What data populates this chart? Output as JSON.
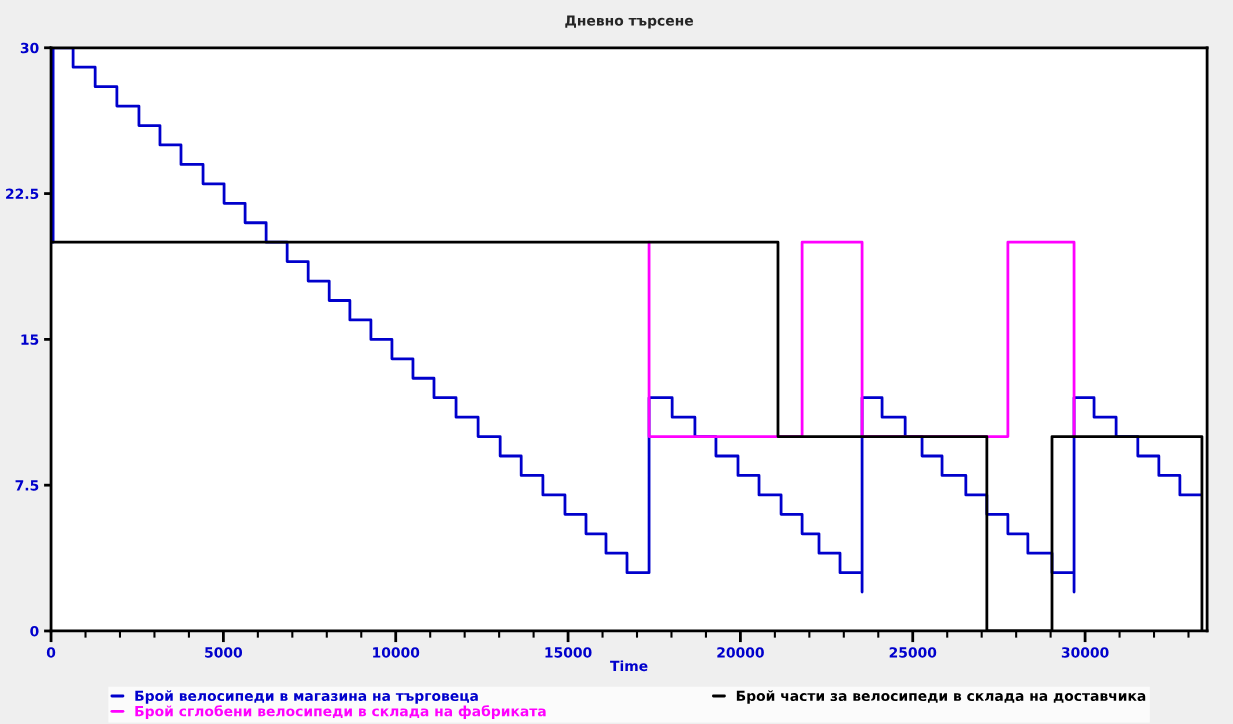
{
  "chart_data": {
    "type": "step",
    "title": "Дневно търсене",
    "xlabel": "Time",
    "xlim": [
      0,
      33540
    ],
    "ylim": [
      0,
      30
    ],
    "xticks": [
      0,
      {
        "value": 1000,
        "label": null
      },
      {
        "value": 2000,
        "label": null
      },
      {
        "value": 3000,
        "label": null
      },
      {
        "value": 4000,
        "label": null
      },
      5000,
      {
        "value": 6000,
        "label": null
      },
      {
        "value": 7000,
        "label": null
      },
      {
        "value": 8000,
        "label": null
      },
      {
        "value": 9000,
        "label": null
      },
      10000,
      {
        "value": 11000,
        "label": null
      },
      {
        "value": 12000,
        "label": null
      },
      {
        "value": 13000,
        "label": null
      },
      {
        "value": 14000,
        "label": null
      },
      15000,
      {
        "value": 16000,
        "label": null
      },
      {
        "value": 17000,
        "label": null
      },
      {
        "value": 18000,
        "label": null
      },
      {
        "value": 19000,
        "label": null
      },
      20000,
      {
        "value": 21000,
        "label": null
      },
      {
        "value": 22000,
        "label": null
      },
      {
        "value": 23000,
        "label": null
      },
      {
        "value": 24000,
        "label": null
      },
      25000,
      {
        "value": 26000,
        "label": null
      },
      {
        "value": 27000,
        "label": null
      },
      {
        "value": 28000,
        "label": null
      },
      {
        "value": 29000,
        "label": null
      },
      30000,
      {
        "value": 31000,
        "label": null
      },
      {
        "value": 32000,
        "label": null
      },
      {
        "value": 33000,
        "label": null
      }
    ],
    "yticks": [
      0,
      7.5,
      15,
      22.5,
      30
    ],
    "grid": false,
    "legend": "bottom",
    "series": [
      {
        "name": "Брой велосипеди в магазина на търговеца",
        "color": "#0000cc",
        "x": [
          0,
          60,
          640,
          1280,
          1910,
          2550,
          3160,
          3770,
          4410,
          5020,
          5630,
          6240,
          6850,
          7460,
          8070,
          8670,
          9280,
          9890,
          10500,
          11110,
          11750,
          12390,
          13030,
          13640,
          14270,
          14910,
          15520,
          16100,
          16710,
          17350,
          18020,
          18680,
          19290,
          19930,
          20540,
          21180,
          21790,
          22280,
          22890,
          23530,
          23530,
          24110,
          24780,
          25270,
          25850,
          26540,
          27150,
          27760,
          28340,
          29040,
          29680,
          29680,
          30260,
          30900,
          31530,
          32140,
          32750,
          33360
        ],
        "values": [
          20,
          30,
          29,
          28,
          27,
          26,
          25,
          24,
          23,
          22,
          21,
          20,
          19,
          18,
          17,
          16,
          15,
          14,
          13,
          12,
          11,
          10,
          9,
          8,
          7,
          6,
          5,
          4,
          3,
          12,
          11,
          10,
          9,
          8,
          7,
          6,
          5,
          4,
          3,
          2,
          12,
          11,
          10,
          9,
          8,
          7,
          6,
          5,
          4,
          3,
          2,
          12,
          11,
          10,
          9,
          8,
          7,
          7
        ]
      },
      {
        "name": "Брой сглобени велосипеди в склада на фабриката",
        "color": "#ff00ff",
        "x": [
          17350,
          17350,
          21790,
          23530,
          27760,
          29680
        ],
        "values": [
          20,
          10,
          20,
          10,
          20,
          10
        ]
      },
      {
        "name": "Брой части за велосипеди в склада на доставчика",
        "color": "#000000",
        "x": [
          0,
          21090,
          27150,
          29040,
          33390
        ],
        "values": [
          20,
          10,
          0,
          10,
          0
        ]
      }
    ]
  }
}
